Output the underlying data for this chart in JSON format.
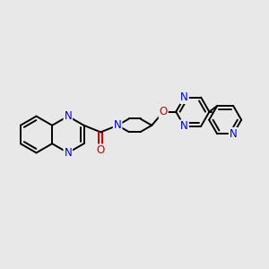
{
  "bg_color": "#e8e8e8",
  "bond_color": "#000000",
  "N_color": "#0000cc",
  "O_color": "#cc0000",
  "line_width": 1.4,
  "dbo": 0.07,
  "font_size": 8.5,
  "figsize": [
    3.0,
    3.0
  ],
  "dpi": 100,
  "xlim": [
    0,
    10
  ],
  "ylim": [
    2,
    8
  ]
}
